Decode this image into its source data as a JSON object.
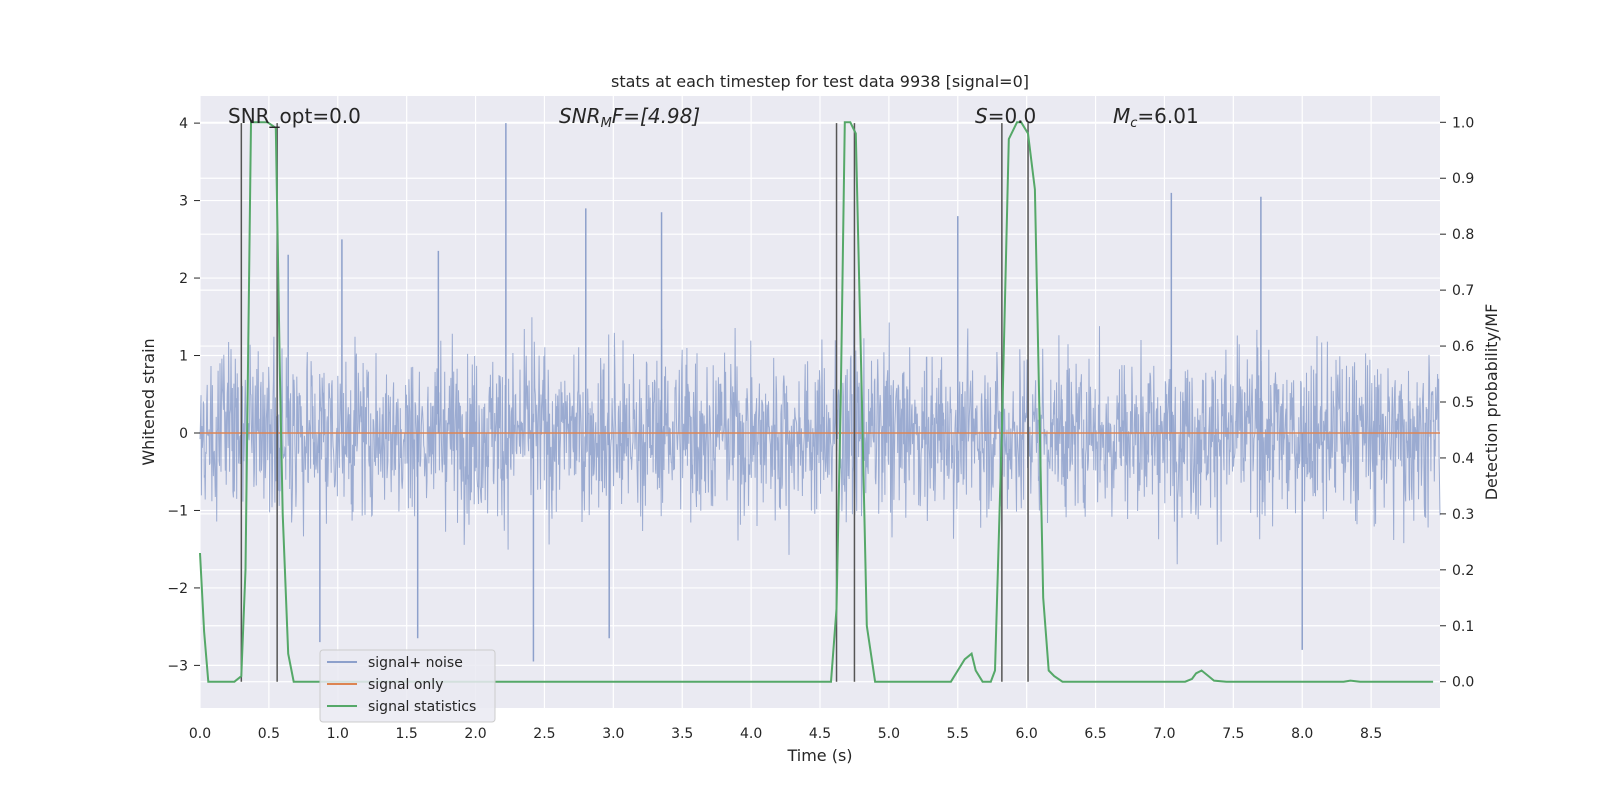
{
  "chart_data": {
    "type": "line",
    "title": "stats at each timestep for test data 9938 [signal=0]",
    "xlabel": "Time (s)",
    "ylabel": "Whitened strain",
    "y2label": "Detection probability/MF",
    "xlim": [
      0.0,
      9.0
    ],
    "ylim": [
      -3.55,
      4.35
    ],
    "y2lim": [
      -0.047,
      1.047
    ],
    "xticks": [
      "0.0",
      "0.5",
      "1.0",
      "1.5",
      "2.0",
      "2.5",
      "3.0",
      "3.5",
      "4.0",
      "4.5",
      "5.0",
      "5.5",
      "6.0",
      "6.5",
      "7.0",
      "7.5",
      "8.0",
      "8.5"
    ],
    "yticks": [
      "4",
      "3",
      "2",
      "1",
      "0",
      "−1",
      "−2",
      "−3"
    ],
    "y2ticks": [
      "1.0",
      "0.9",
      "0.8",
      "0.7",
      "0.6",
      "0.5",
      "0.4",
      "0.3",
      "0.2",
      "0.1",
      "0.0"
    ],
    "grid": true,
    "legend_placement": "lower-left",
    "annotations": {
      "snr_opt": "SNR_opt=0.0",
      "snr_mf_label": "SNR",
      "snr_mf_sub": "M",
      "snr_mf_rest": "F=[4.98]",
      "s_label": "S",
      "s_rest": "=0.0",
      "mc_label": "M",
      "mc_sub": "c",
      "mc_rest": "=6.01"
    },
    "vertical_lines_x": [
      0.3,
      0.56,
      4.62,
      4.75,
      5.82,
      6.01
    ],
    "series": [
      {
        "name": "signal+ noise",
        "color": "#8da0cb",
        "typical_amplitude": 1.0,
        "peak_values": [
          [
            2.22,
            4.0
          ],
          [
            2.8,
            2.9
          ],
          [
            3.35,
            2.85
          ],
          [
            5.5,
            2.8
          ],
          [
            7.05,
            3.1
          ],
          [
            7.7,
            3.05
          ],
          [
            0.64,
            2.3
          ],
          [
            1.03,
            2.5
          ],
          [
            1.73,
            2.35
          ],
          [
            0.87,
            -2.7
          ],
          [
            1.58,
            -2.65
          ],
          [
            2.42,
            -2.95
          ],
          [
            2.97,
            -2.65
          ],
          [
            8.0,
            -2.8
          ]
        ]
      },
      {
        "name": "signal only",
        "color": "#dd8452",
        "x": [
          0.0,
          9.0
        ],
        "y": [
          0.0,
          0.0
        ]
      },
      {
        "name": "signal statistics",
        "color": "#55a868",
        "axis": "right",
        "x": [
          0.0,
          0.03,
          0.06,
          0.1,
          0.17,
          0.25,
          0.3,
          0.33,
          0.37,
          0.43,
          0.49,
          0.55,
          0.58,
          0.6,
          0.64,
          0.68,
          0.74,
          0.8,
          4.58,
          4.62,
          4.65,
          4.68,
          4.72,
          4.76,
          4.8,
          4.84,
          4.9,
          5.0,
          5.45,
          5.5,
          5.55,
          5.6,
          5.63,
          5.68,
          5.74,
          5.77,
          5.82,
          5.87,
          5.93,
          5.96,
          6.01,
          6.06,
          6.12,
          6.16,
          6.2,
          6.26,
          6.35,
          7.15,
          7.2,
          7.23,
          7.27,
          7.32,
          7.36,
          7.45,
          8.3,
          8.35,
          8.42,
          8.95
        ],
        "y": [
          0.23,
          0.09,
          0.0,
          0.0,
          0.0,
          0.0,
          0.01,
          0.2,
          1.0,
          1.0,
          1.0,
          0.99,
          0.55,
          0.3,
          0.05,
          0.0,
          0.0,
          0.0,
          0.0,
          0.13,
          0.5,
          1.0,
          1.0,
          0.98,
          0.55,
          0.1,
          0.0,
          0.0,
          0.0,
          0.02,
          0.04,
          0.05,
          0.02,
          0.0,
          0.0,
          0.02,
          0.45,
          0.97,
          1.0,
          1.0,
          0.98,
          0.88,
          0.15,
          0.02,
          0.01,
          0.0,
          0.0,
          0.0,
          0.005,
          0.015,
          0.02,
          0.01,
          0.002,
          0.0,
          0.0,
          0.002,
          0.0,
          0.0
        ]
      }
    ]
  }
}
